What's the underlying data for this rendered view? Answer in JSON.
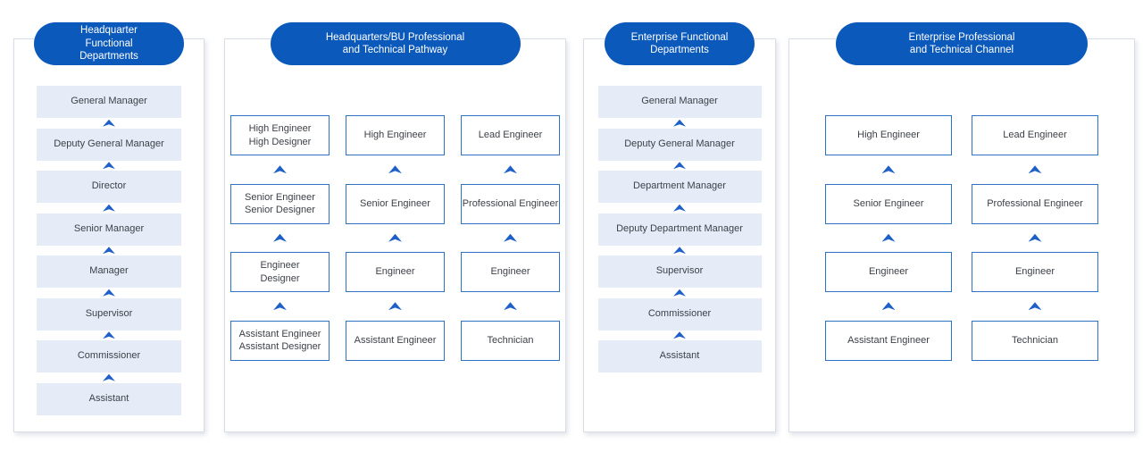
{
  "palette": {
    "pill_blue": "#0b59bb",
    "pill_text": "#ffffff",
    "box_fill": "#e6ecf7",
    "box_border_blue": "#2e72c4",
    "arrow_blue": "#1e60c8",
    "panel_border": "#d9dde6",
    "text_dark": "#3d4148"
  },
  "columns": [
    {
      "title": "Headquarter\nFunctional\nDepartments",
      "type": "ladder-filled",
      "levels": [
        "General Manager",
        "Deputy General Manager",
        "Director",
        "Senior Manager",
        "Manager",
        "Supervisor",
        "Commissioner",
        "Assistant"
      ]
    },
    {
      "title": "Headquarters/BU Professional\nand Technical Pathway",
      "type": "tracks-outlined",
      "tracks": [
        {
          "levels": [
            "High Engineer\nHigh Designer",
            "Senior Engineer\nSenior Designer",
            "Engineer\nDesigner",
            "Assistant Engineer\nAssistant Designer"
          ]
        },
        {
          "levels": [
            "High Engineer",
            "Senior Engineer",
            "Engineer",
            "Assistant Engineer"
          ]
        },
        {
          "levels": [
            "Lead Engineer",
            "Professional Engineer",
            "Engineer",
            "Technician"
          ]
        }
      ]
    },
    {
      "title": "Enterprise Functional\nDepartments",
      "type": "ladder-filled",
      "levels": [
        "General Manager",
        "Deputy General Manager",
        "Department Manager",
        "Deputy Department Manager",
        "Supervisor",
        "Commissioner",
        "Assistant"
      ]
    },
    {
      "title": "Enterprise Professional\nand Technical Channel",
      "type": "tracks-outlined",
      "tracks": [
        {
          "levels": [
            "High Engineer",
            "Senior Engineer",
            "Engineer",
            "Assistant Engineer"
          ]
        },
        {
          "levels": [
            "Lead Engineer",
            "Professional Engineer",
            "Engineer",
            "Technician"
          ]
        }
      ]
    }
  ]
}
